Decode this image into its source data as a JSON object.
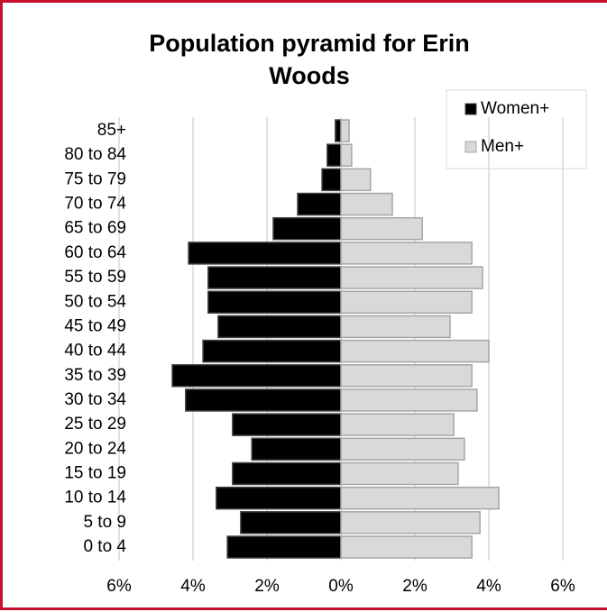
{
  "chart_data": {
    "type": "pyramid",
    "title": "Population pyramid for Erin Woods",
    "categories": [
      "0 to 4",
      "5 to 9",
      "10 to 14",
      "15 to 19",
      "20 to 24",
      "25 to 29",
      "30 to 34",
      "35 to 39",
      "40 to 44",
      "45 to 49",
      "50 to 54",
      "55 to 59",
      "60 to 64",
      "65 to 69",
      "70 to 74",
      "75 to 79",
      "80 to 84",
      "85+"
    ],
    "series": [
      {
        "name": "Women+",
        "color": "#000000",
        "values": [
          -3.07,
          -2.71,
          -3.37,
          -2.93,
          -2.41,
          -2.93,
          -4.2,
          -4.56,
          -3.73,
          -3.32,
          -3.59,
          -3.59,
          -4.12,
          -1.83,
          -1.17,
          -0.51,
          -0.37,
          -0.15
        ]
      },
      {
        "name": "Men+",
        "color": "#d9d9d9",
        "values": [
          3.54,
          3.76,
          4.27,
          3.17,
          3.34,
          3.05,
          3.68,
          3.54,
          4.0,
          2.95,
          3.54,
          3.83,
          3.54,
          2.2,
          1.39,
          0.8,
          0.29,
          0.22
        ]
      }
    ],
    "xlim": [
      -6,
      6
    ],
    "xticks": [
      {
        "value": -6,
        "label": "6%"
      },
      {
        "value": -4,
        "label": "4%"
      },
      {
        "value": -2,
        "label": "2%"
      },
      {
        "value": 0,
        "label": "0%"
      },
      {
        "value": 2,
        "label": "2%"
      },
      {
        "value": 4,
        "label": "4%"
      },
      {
        "value": 6,
        "label": "6%"
      }
    ],
    "grid": true,
    "legend": "top-right"
  }
}
